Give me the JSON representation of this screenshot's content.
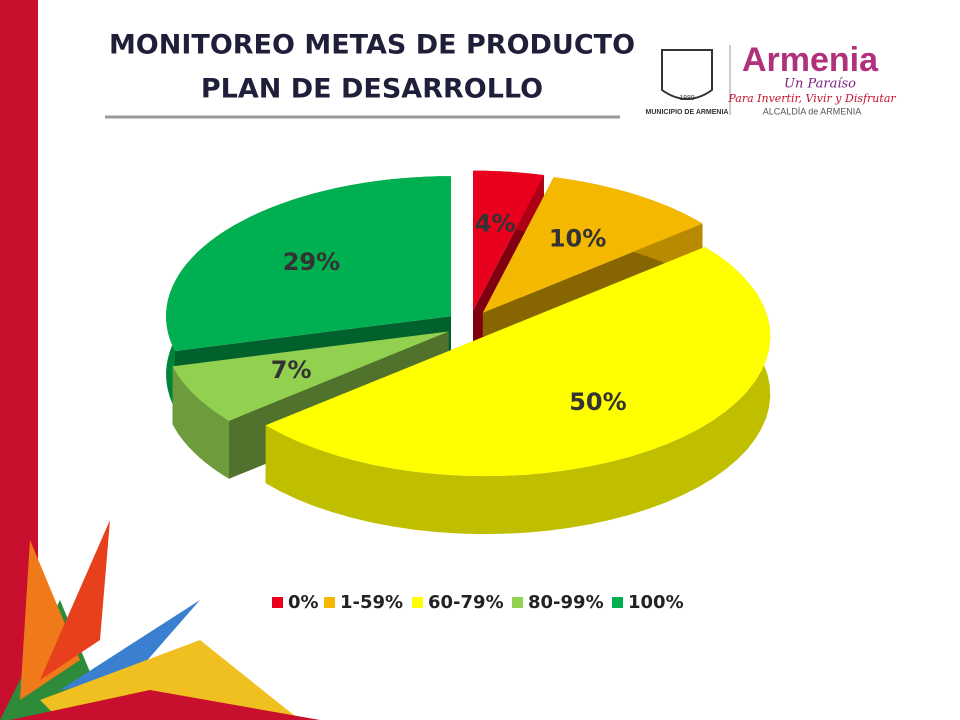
{
  "header": {
    "title_lines": [
      "MONITOREO METAS DE PRODUCTO",
      "PLAN DE DESARROLLO"
    ]
  },
  "logo": {
    "shield_year": "1889",
    "shield_caption": "MUNICIPIO DE ARMENIA",
    "brand": "Armenia",
    "tagline": "Un Paraíso",
    "slogan": "Para Invertir, Vivir y Disfrutar",
    "office": "ALCALDÍA de ARMENIA"
  },
  "chart_data": {
    "type": "pie3d",
    "categories": [
      "0%",
      "1-59%",
      "60-79%",
      "80-99%",
      "100%"
    ],
    "values": [
      4,
      10,
      50,
      7,
      29
    ],
    "value_labels": [
      "4%",
      "10%",
      "50%",
      "7%",
      "29%"
    ],
    "colors": [
      "#e8001c",
      "#f5b800",
      "#ffff00",
      "#92d050",
      "#00b050"
    ],
    "legend": "bottom"
  }
}
